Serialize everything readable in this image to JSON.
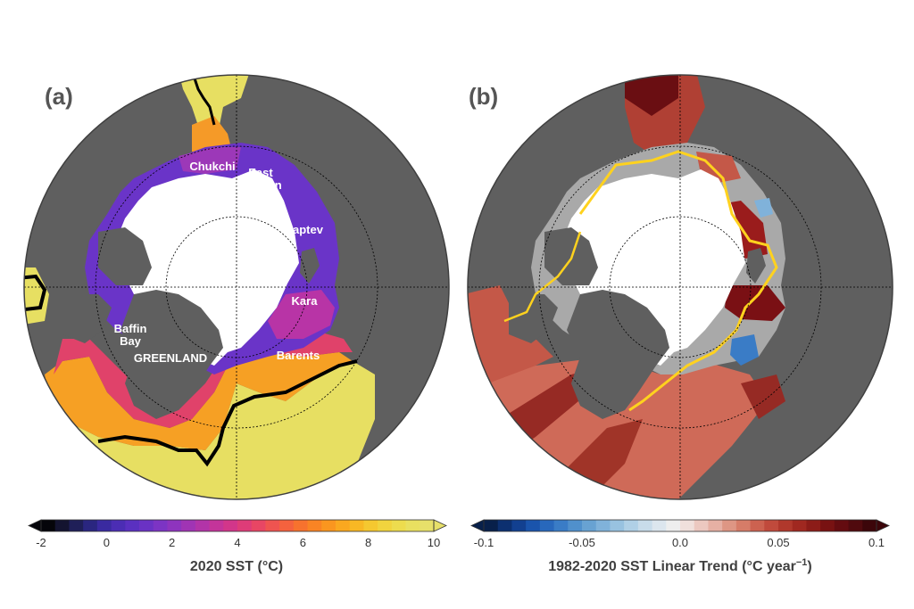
{
  "panels": [
    {
      "id": "a",
      "label": "(a)",
      "regions": {
        "chukchi": "Chukchi",
        "east": "East",
        "siberian": "Siberian",
        "laptev": "Laptev",
        "kara": "Kara",
        "baffin": "Baffin",
        "bay": "Bay",
        "greenland": "GREENLAND",
        "barents": "Barents"
      },
      "colorbar": {
        "ticks": [
          "-2",
          "0",
          "2",
          "4",
          "6",
          "8",
          "10"
        ],
        "tick_values": [
          -2,
          0,
          2,
          4,
          6,
          8,
          10
        ],
        "range": [
          -2,
          10
        ],
        "title": "2020 SST (°C)",
        "colors": [
          "#05050a",
          "#141430",
          "#1f1f58",
          "#2a2680",
          "#3a2aa0",
          "#4b2db4",
          "#5a30c0",
          "#6a32c4",
          "#7c34c4",
          "#8e34be",
          "#a034b4",
          "#b234a8",
          "#c4349a",
          "#d2368a",
          "#de3c78",
          "#e84664",
          "#ef5450",
          "#f4623e",
          "#f7722e",
          "#f98424",
          "#fa961f",
          "#faa81f",
          "#f8b824",
          "#f5c830",
          "#f1d43e",
          "#eddc4e",
          "#e9e060",
          "#e7e06a"
        ]
      }
    },
    {
      "id": "b",
      "label": "(b)",
      "colorbar": {
        "ticks": [
          "-0.1",
          "-0.05",
          "0.0",
          "0.05",
          "0.1"
        ],
        "tick_values": [
          -0.1,
          -0.05,
          0.0,
          0.05,
          0.1
        ],
        "range": [
          -0.1,
          0.1
        ],
        "title": "1982-2020 SST Linear Trend (°C year",
        "title_exp": "−1",
        "title_end": ")",
        "colors": [
          "#08204a",
          "#0c3070",
          "#124090",
          "#1a54ac",
          "#2868bc",
          "#3a7cc6",
          "#5090cc",
          "#68a2d2",
          "#80b2da",
          "#98c2e0",
          "#b0d0e6",
          "#c8dcea",
          "#dce6ee",
          "#eeeeee",
          "#f0e0dc",
          "#ecc8c0",
          "#e6b0a4",
          "#de9684",
          "#d67c68",
          "#cc6250",
          "#c04a3c",
          "#b0382c",
          "#a02820",
          "#8c1c18",
          "#781212",
          "#640c10",
          "#500a0e",
          "#3c060a"
        ]
      }
    }
  ],
  "colors": {
    "land": "#5f5f5f",
    "ice": "#ffffff",
    "outline": "#404040",
    "ice_edge_b": "#ffd21e",
    "front_a": "#000000"
  }
}
